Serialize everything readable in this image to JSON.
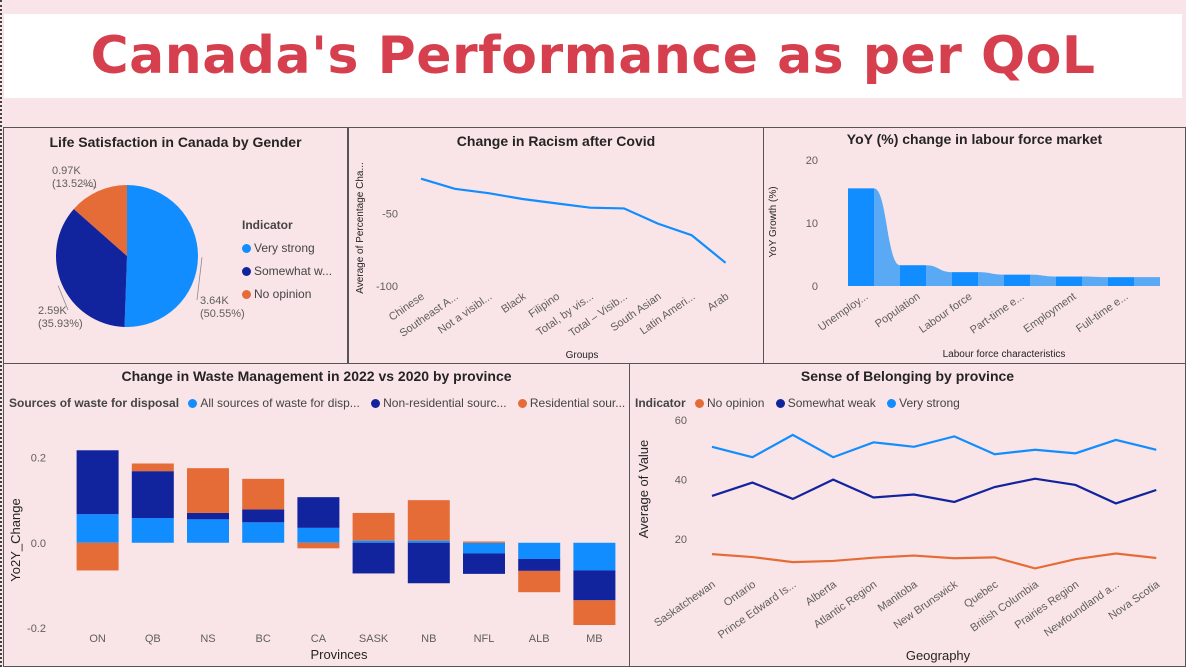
{
  "page": {
    "title": "Canada's Performance as per QoL"
  },
  "colors": {
    "bright_blue": "#118dff",
    "dark_blue": "#12239e",
    "orange": "#e66c37",
    "light_blue": "#5aa9f5",
    "title_red": "#d6404e"
  },
  "chart_data": [
    {
      "id": "life_satisfaction",
      "type": "pie",
      "title": "Life Satisfaction in Canada by Gender",
      "legend_title": "Indicator",
      "slices": [
        {
          "name": "Very strong",
          "value": 3.64,
          "label": "3.64K",
          "pct": "(50.55%)",
          "color": "#118dff"
        },
        {
          "name": "Somewhat w...",
          "value": 2.59,
          "label": "2.59K",
          "pct": "(35.93%)",
          "color": "#12239e"
        },
        {
          "name": "No opinion",
          "value": 0.97,
          "label": "0.97K",
          "pct": "(13.52%)",
          "color": "#e66c37"
        }
      ]
    },
    {
      "id": "racism",
      "type": "line",
      "title": "Change in Racism after Covid",
      "xlabel": "Groups",
      "ylabel": "Average of Percentage Cha...",
      "ylim": [
        -100,
        -20
      ],
      "yticks": [
        -50,
        -100
      ],
      "categories": [
        "Chinese",
        "Southeast A...",
        "Not a visibl...",
        "Black",
        "Filipino",
        "Total, by vis...",
        "Total – Visib...",
        "South Asian",
        "Latin Ameri...",
        "Arab"
      ],
      "values": [
        -26,
        -33,
        -36,
        -40,
        -43,
        -46,
        -46.5,
        -57,
        -65,
        -84
      ]
    },
    {
      "id": "labour",
      "type": "area",
      "title": "YoY (%) change in labour force market",
      "xlabel": "Labour force characteristics",
      "ylabel": "YoY Growth (%)",
      "ylim": [
        0,
        20
      ],
      "yticks": [
        0,
        10,
        20
      ],
      "categories": [
        "Unemploy...",
        "",
        "Population",
        "",
        "Labour force",
        "",
        "Part-time e...",
        "",
        "Employment",
        "",
        "Full-time e...",
        ""
      ],
      "values": [
        15.5,
        15.5,
        3.3,
        3.3,
        2.2,
        2.2,
        1.8,
        1.8,
        1.5,
        1.5,
        1.4,
        1.4
      ]
    },
    {
      "id": "waste",
      "type": "bar",
      "title": "Change in Waste Management in 2022 vs 2020 by province",
      "legend_title": "Sources of waste for disposal",
      "xlabel": "Provinces",
      "ylabel": "Yo2Y_Change",
      "ylim": [
        -0.2,
        0.22
      ],
      "yticks": [
        0.2,
        0.0,
        -0.2
      ],
      "ytick_labels": [
        "0.2",
        "0.0",
        "-0.2"
      ],
      "categories": [
        "ON",
        "QB",
        "NS",
        "BC",
        "CA",
        "SASK",
        "NB",
        "NFL",
        "ALB",
        "MB"
      ],
      "series": [
        {
          "name": "All sources of waste for disp...",
          "color": "#118dff",
          "values": [
            0.067,
            0.058,
            0.055,
            0.048,
            0.035,
            0.005,
            0.005,
            -0.025,
            -0.038,
            -0.065
          ]
        },
        {
          "name": "Non-residential sourc...",
          "color": "#12239e",
          "values": [
            0.15,
            0.11,
            0.015,
            0.03,
            0.072,
            -0.072,
            -0.095,
            -0.048,
            -0.028,
            -0.07
          ]
        },
        {
          "name": "Residential sour...",
          "color": "#e66c37",
          "values": [
            -0.065,
            0.018,
            0.105,
            0.072,
            -0.013,
            0.065,
            0.095,
            0.003,
            -0.05,
            -0.058
          ]
        }
      ]
    },
    {
      "id": "belonging",
      "type": "line",
      "title": "Sense of Belonging by province",
      "legend_title": "Indicator",
      "xlabel": "Geography",
      "ylabel": "Average of Value",
      "ylim": [
        10,
        62
      ],
      "yticks": [
        60,
        40,
        20
      ],
      "categories": [
        "Saskatchewan",
        "Ontario",
        "Prince Edward Is...",
        "Alberta",
        "Atlantic Region",
        "Manitoba",
        "New Brunswick",
        "Quebec",
        "British Columbia",
        "Prairies Region",
        "Newfoundland a...",
        "Nova Scotia"
      ],
      "series": [
        {
          "name": "No opinion",
          "color": "#e66c37",
          "values": [
            15,
            14,
            12.3,
            12.7,
            13.8,
            14.5,
            13.6,
            13.9,
            10.2,
            13.3,
            15.2,
            13.7
          ]
        },
        {
          "name": "Somewhat weak",
          "color": "#12239e",
          "values": [
            34.5,
            39,
            33.5,
            40,
            34,
            35,
            32.5,
            37.5,
            40.3,
            38.2,
            32,
            36.5
          ]
        },
        {
          "name": "Very strong",
          "color": "#118dff",
          "values": [
            51,
            47.5,
            55,
            47.5,
            52.5,
            51,
            54.5,
            48.5,
            50,
            48.8,
            53.3,
            50
          ]
        }
      ]
    }
  ]
}
